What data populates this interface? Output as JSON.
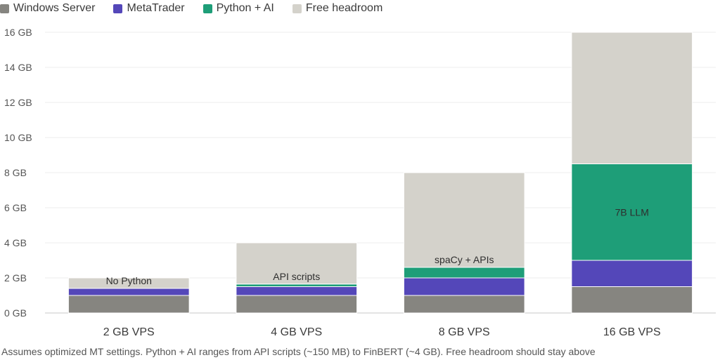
{
  "legend": {
    "items": [
      {
        "label": "Windows Server",
        "color": "#868580"
      },
      {
        "label": "MetaTrader",
        "color": "#5447b9"
      },
      {
        "label": "Python + AI",
        "color": "#1e9e78"
      },
      {
        "label": "Free headroom",
        "color": "#d4d2cb"
      }
    ]
  },
  "chart_data": {
    "type": "bar",
    "stacked": true,
    "categories": [
      "2 GB VPS",
      "4 GB VPS",
      "8 GB VPS",
      "16 GB VPS"
    ],
    "series": [
      {
        "name": "Windows Server",
        "color": "#868580",
        "values": [
          1.0,
          1.0,
          1.0,
          1.5
        ]
      },
      {
        "name": "MetaTrader",
        "color": "#5447b9",
        "values": [
          0.4,
          0.5,
          1.0,
          1.5
        ]
      },
      {
        "name": "Python + AI",
        "color": "#1e9e78",
        "values": [
          0,
          0.15,
          0.6,
          5.5
        ]
      },
      {
        "name": "Free headroom",
        "color": "#d4d2cb",
        "values": [
          0.6,
          2.35,
          5.4,
          7.5
        ]
      }
    ],
    "bar_annotations": [
      "No Python",
      "API scripts",
      "spaCy + APIs",
      "7B LLM"
    ],
    "y_ticks": [
      "0 GB",
      "2 GB",
      "4 GB",
      "6 GB",
      "8 GB",
      "10 GB",
      "12 GB",
      "14 GB",
      "16 GB"
    ],
    "ylim": [
      0,
      16
    ],
    "grid": true,
    "legend_position": "top-left"
  },
  "footnote": "Assumes optimized MT settings. Python + AI ranges from API scripts (~150 MB) to FinBERT (~4 GB). Free headroom should stay above"
}
